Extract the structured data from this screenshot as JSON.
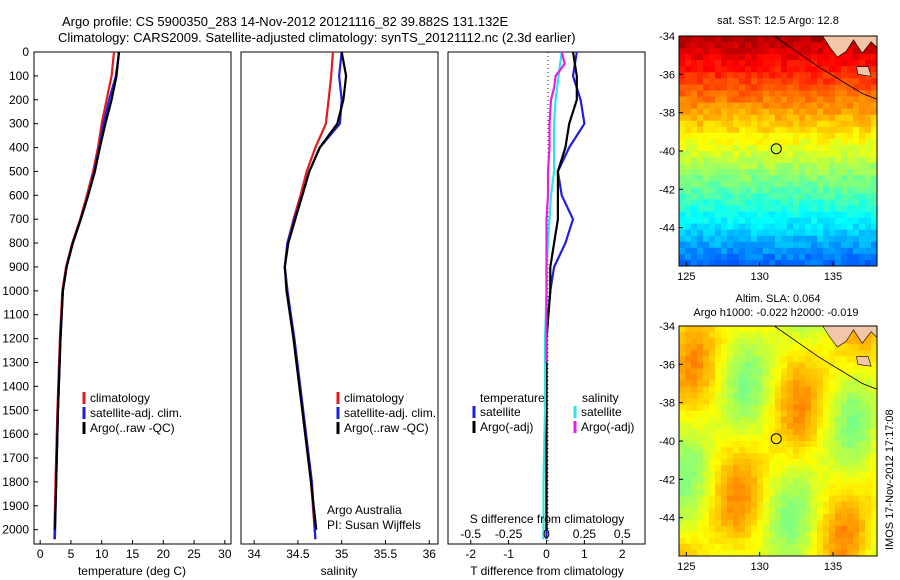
{
  "figure": {
    "title_line1": "Argo profile: CS 5900350_283 14-Nov-2012 20121116_82 39.882S 131.132E",
    "title_line2": "Climatology: CARS2009. Satellite-adjusted climatology: synTS_20121112.nc (2.3d earlier)",
    "imos_stamp": "IMOS 17-Nov-2012 17:17:08",
    "argo_credit_1": "Argo Australia",
    "argo_credit_2": "PI: Susan Wijffels"
  },
  "colors": {
    "climatology": "#e41a1c",
    "satellite": "#1f1fe0",
    "argo": "#000000",
    "sal_satellite": "#2ee6e6",
    "sal_argo": "#e61ee6"
  },
  "chart_data": [
    {
      "type": "line",
      "panel": "temperature",
      "xlabel": "temperature (deg C)",
      "ylabel": "",
      "xlim": [
        -1,
        31
      ],
      "ylim": [
        2060,
        0
      ],
      "xticks": [
        0,
        5,
        10,
        15,
        20,
        25,
        30
      ],
      "yticks": [
        0,
        100,
        200,
        300,
        400,
        500,
        600,
        700,
        800,
        900,
        1000,
        1100,
        1200,
        1300,
        1400,
        1500,
        1600,
        1700,
        1800,
        1900,
        2000
      ],
      "legend": [
        "climatology",
        "satellite-adj. clim.",
        "Argo(..raw -QC)"
      ],
      "series": [
        {
          "name": "climatology",
          "x": [
            12.0,
            11.6,
            10.8,
            10.0,
            9.4,
            8.6,
            7.6,
            6.5,
            5.2,
            4.2,
            3.6,
            3.2,
            2.8,
            2.5,
            2.3
          ],
          "y": [
            0,
            100,
            200,
            300,
            400,
            500,
            600,
            700,
            800,
            900,
            1000,
            1200,
            1500,
            1800,
            2040
          ]
        },
        {
          "name": "satellite-adj. clim.",
          "x": [
            12.8,
            12.3,
            11.2,
            10.3,
            9.6,
            8.8,
            7.8,
            6.6,
            5.3,
            4.3,
            3.7,
            3.3,
            2.9,
            2.6,
            2.4
          ],
          "y": [
            0,
            100,
            200,
            300,
            400,
            500,
            600,
            700,
            800,
            900,
            1000,
            1200,
            1500,
            1800,
            2040
          ]
        },
        {
          "name": "Argo(..raw -QC)",
          "x": [
            12.8,
            12.4,
            11.6,
            10.6,
            9.7,
            8.9,
            7.8,
            6.6,
            5.3,
            4.3,
            3.7,
            3.3,
            2.9,
            2.6,
            2.4
          ],
          "y": [
            0,
            100,
            200,
            300,
            400,
            500,
            600,
            700,
            800,
            900,
            1000,
            1200,
            1500,
            1800,
            2000
          ]
        }
      ]
    },
    {
      "type": "line",
      "panel": "salinity",
      "xlabel": "salinity",
      "ylabel": "",
      "xlim": [
        33.85,
        36.1
      ],
      "ylim": [
        2060,
        0
      ],
      "xticks": [
        34,
        34.5,
        35,
        35.5,
        36
      ],
      "xticklabels": [
        "34",
        "34.5",
        "35",
        "35.5",
        "36"
      ],
      "legend": [
        "climatology",
        "satellite-adj. clim.",
        "Argo(..raw -QC)"
      ],
      "series": [
        {
          "name": "climatology",
          "x": [
            34.9,
            34.88,
            34.85,
            34.82,
            34.7,
            34.6,
            34.53,
            34.45,
            34.38,
            34.35,
            34.38,
            34.45,
            34.55,
            34.65,
            34.7
          ],
          "y": [
            0,
            100,
            200,
            300,
            400,
            500,
            600,
            700,
            800,
            900,
            1000,
            1200,
            1500,
            1800,
            2040
          ]
        },
        {
          "name": "satellite-adj. clim.",
          "x": [
            35.0,
            34.97,
            35.0,
            34.98,
            34.75,
            34.63,
            34.55,
            34.46,
            34.38,
            34.35,
            34.38,
            34.46,
            34.56,
            34.66,
            34.7
          ],
          "y": [
            0,
            100,
            200,
            300,
            400,
            500,
            600,
            700,
            800,
            900,
            1000,
            1200,
            1500,
            1800,
            2040
          ]
        },
        {
          "name": "Argo(..raw -QC)",
          "x": [
            35.0,
            35.05,
            35.02,
            34.95,
            34.75,
            34.63,
            34.55,
            34.47,
            34.39,
            34.35,
            34.37,
            34.45,
            34.55,
            34.65,
            34.71
          ],
          "y": [
            0,
            100,
            200,
            300,
            400,
            500,
            600,
            700,
            800,
            900,
            1000,
            1200,
            1500,
            1800,
            2000
          ]
        }
      ]
    },
    {
      "type": "line",
      "panel": "difference",
      "xlabel": "T difference from climatology",
      "xlabel_top": "S difference from climatology",
      "xlim": [
        -2.6,
        2.6
      ],
      "ylim": [
        2060,
        0
      ],
      "xticks": [
        -2,
        -1,
        0,
        1,
        2
      ],
      "xticks_top": [
        -0.5,
        -0.25,
        0,
        0.25,
        0.5
      ],
      "xticklabels_top": [
        "-0.5",
        "-0.25",
        "0",
        "0.25",
        "0.5"
      ],
      "legend_left_title": "temperature",
      "legend_right_title": "salinity",
      "legend": [
        "satellite",
        "Argo(-adj)",
        "satellite",
        "Argo(-adj)"
      ],
      "series": [
        {
          "name": "satellite",
          "x": [
            0.8,
            0.7,
            0.9,
            1.0,
            0.6,
            0.3,
            0.4,
            0.7,
            0.5,
            0.2,
            0.1,
            0.0,
            0.0,
            0.0,
            0.0
          ],
          "y": [
            0,
            100,
            200,
            300,
            400,
            500,
            600,
            700,
            800,
            900,
            1000,
            1200,
            1500,
            1800,
            2040
          ]
        },
        {
          "name": "Argo(-adj)",
          "x": [
            0.7,
            0.8,
            0.8,
            0.6,
            0.5,
            0.3,
            0.3,
            0.3,
            0.2,
            0.1,
            0.1,
            0.0,
            0.0,
            0.0,
            0.0
          ],
          "y": [
            0,
            100,
            200,
            300,
            400,
            500,
            600,
            700,
            800,
            900,
            1000,
            1200,
            1500,
            1800,
            2000
          ]
        },
        {
          "name": "satellite",
          "x": [
            0.1,
            0.08,
            0.06,
            0.05,
            0.05,
            0.05,
            0.03,
            0.02,
            0.01,
            0.0,
            0.0,
            -0.01,
            -0.01,
            -0.02,
            -0.02
          ],
          "y": [
            0,
            100,
            200,
            300,
            400,
            500,
            600,
            700,
            800,
            900,
            1000,
            1200,
            1500,
            1800,
            2040
          ]
        },
        {
          "name": "Argo(-adj)",
          "x": [
            0.1,
            0.12,
            0.06,
            0.05,
            0.03,
            0.02,
            0.02,
            0.01,
            0.01,
            0.0,
            0.0,
            0.0,
            0.0,
            0.0,
            0.0
          ],
          "y": [
            0,
            50,
            100,
            150,
            200,
            300,
            400,
            500,
            600,
            700,
            800,
            900,
            1000,
            1200,
            1300
          ]
        }
      ]
    },
    {
      "type": "heatmap",
      "panel": "sst-map",
      "title": "sat. SST: 12.5 Argo: 12.8",
      "xlim": [
        124.5,
        138
      ],
      "ylim": [
        -46,
        -34
      ],
      "xticks": [
        125,
        130,
        135
      ],
      "yticks": [
        -34,
        -36,
        -38,
        -40,
        -42,
        -44
      ],
      "argo_position": [
        131.132,
        -39.882
      ]
    },
    {
      "type": "heatmap",
      "panel": "sla-map",
      "title_line1": "Altim. SLA: 0.064",
      "title_line2": "Argo h1000: -0.022 h2000: -0.019",
      "xlim": [
        124.5,
        138
      ],
      "ylim": [
        -46,
        -34
      ],
      "xticks": [
        125,
        130,
        135
      ],
      "yticks": [
        -34,
        -36,
        -38,
        -40,
        -42,
        -44
      ],
      "argo_position": [
        131.132,
        -39.882
      ]
    }
  ]
}
